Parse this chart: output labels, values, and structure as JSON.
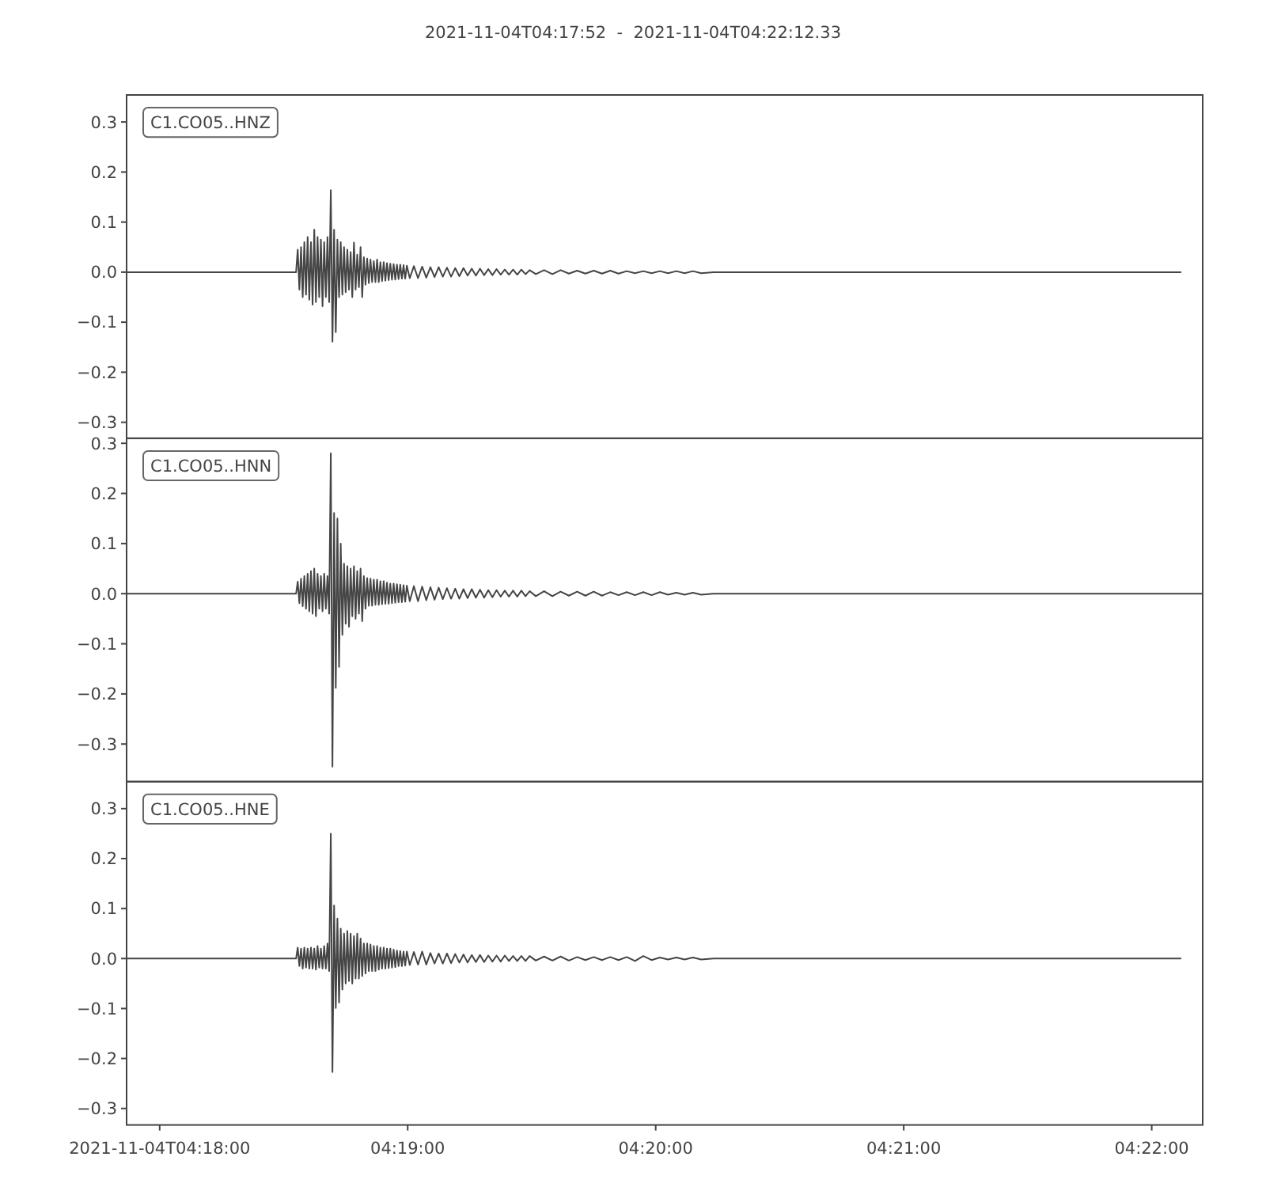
{
  "chart_data": [
    {
      "type": "line",
      "title": "2021-11-04T04:17:52  -  2021-11-04T04:22:12.33",
      "annotations": [
        "C1.CO05..HNZ"
      ],
      "x": [
        "2021-11-04T04:17:52",
        "2021-11-04T04:18:33",
        "2021-11-04T04:18:33.4",
        "2021-11-04T04:18:33.8",
        "2021-11-04T04:18:34.2",
        "2021-11-04T04:18:34.6",
        "2021-11-04T04:18:35",
        "2021-11-04T04:18:35.4",
        "2021-11-04T04:18:35.8",
        "2021-11-04T04:18:36.2",
        "2021-11-04T04:18:36.6",
        "2021-11-04T04:18:37",
        "2021-11-04T04:18:37.4",
        "2021-11-04T04:18:37.8",
        "2021-11-04T04:18:38.2",
        "2021-11-04T04:18:38.6",
        "2021-11-04T04:18:39",
        "2021-11-04T04:18:39.4",
        "2021-11-04T04:18:39.8",
        "2021-11-04T04:18:40.2",
        "2021-11-04T04:18:40.6",
        "2021-11-04T04:18:41",
        "2021-11-04T04:18:41.4",
        "2021-11-04T04:18:41.8",
        "2021-11-04T04:18:42.2",
        "2021-11-04T04:18:42.6",
        "2021-11-04T04:18:43",
        "2021-11-04T04:18:43.4",
        "2021-11-04T04:18:43.8",
        "2021-11-04T04:18:44.2",
        "2021-11-04T04:18:44.6",
        "2021-11-04T04:18:45",
        "2021-11-04T04:18:45.4",
        "2021-11-04T04:18:45.8",
        "2021-11-04T04:18:46.2",
        "2021-11-04T04:18:46.6",
        "2021-11-04T04:18:47",
        "2021-11-04T04:18:47.4",
        "2021-11-04T04:18:47.8",
        "2021-11-04T04:18:48.2",
        "2021-11-04T04:18:48.6",
        "2021-11-04T04:18:49",
        "2021-11-04T04:18:49.4",
        "2021-11-04T04:18:49.8",
        "2021-11-04T04:18:50.2",
        "2021-11-04T04:18:50.6",
        "2021-11-04T04:18:51",
        "2021-11-04T04:18:51.4",
        "2021-11-04T04:18:51.8",
        "2021-11-04T04:18:52.2",
        "2021-11-04T04:18:52.6",
        "2021-11-04T04:18:53",
        "2021-11-04T04:18:53.4",
        "2021-11-04T04:18:53.8",
        "2021-11-04T04:18:54.2",
        "2021-11-04T04:18:54.6",
        "2021-11-04T04:18:55",
        "2021-11-04T04:18:55.4",
        "2021-11-04T04:18:55.8",
        "2021-11-04T04:18:56.2",
        "2021-11-04T04:18:56.6",
        "2021-11-04T04:18:57",
        "2021-11-04T04:18:57.4",
        "2021-11-04T04:18:57.8",
        "2021-11-04T04:18:58.2",
        "2021-11-04T04:18:58.6",
        "2021-11-04T04:18:59",
        "2021-11-04T04:18:59.4",
        "2021-11-04T04:18:59.8",
        "2021-11-04T04:19:00.5",
        "2021-11-04T04:19:01.5",
        "2021-11-04T04:19:02.5",
        "2021-11-04T04:19:03.5",
        "2021-11-04T04:19:04.5",
        "2021-11-04T04:19:05.5",
        "2021-11-04T04:19:06.5",
        "2021-11-04T04:19:07.5",
        "2021-11-04T04:19:08.5",
        "2021-11-04T04:19:09.5",
        "2021-11-04T04:19:10.5",
        "2021-11-04T04:19:11.5",
        "2021-11-04T04:19:12.5",
        "2021-11-04T04:19:13.5",
        "2021-11-04T04:19:14.5",
        "2021-11-04T04:19:15.5",
        "2021-11-04T04:19:16.5",
        "2021-11-04T04:19:17.5",
        "2021-11-04T04:19:18.5",
        "2021-11-04T04:19:19.5",
        "2021-11-04T04:19:20.5",
        "2021-11-04T04:19:21.5",
        "2021-11-04T04:19:22.5",
        "2021-11-04T04:19:23.5",
        "2021-11-04T04:19:24.5",
        "2021-11-04T04:19:25.5",
        "2021-11-04T04:19:26.5",
        "2021-11-04T04:19:27.5",
        "2021-11-04T04:19:28.5",
        "2021-11-04T04:19:29.5",
        "2021-11-04T04:19:31",
        "2021-11-04T04:19:33",
        "2021-11-04T04:19:35",
        "2021-11-04T04:19:37",
        "2021-11-04T04:19:39",
        "2021-11-04T04:19:41",
        "2021-11-04T04:19:43",
        "2021-11-04T04:19:45",
        "2021-11-04T04:19:47",
        "2021-11-04T04:19:49",
        "2021-11-04T04:19:51",
        "2021-11-04T04:19:53",
        "2021-11-04T04:19:55",
        "2021-11-04T04:19:57",
        "2021-11-04T04:19:59",
        "2021-11-04T04:20:01",
        "2021-11-04T04:20:03",
        "2021-11-04T04:20:05",
        "2021-11-04T04:20:07",
        "2021-11-04T04:20:09",
        "2021-11-04T04:20:11",
        "2021-11-04T04:20:14",
        "2021-11-04T04:22:07"
      ],
      "series": [
        {
          "color": "#454545",
          "values": [
            0,
            0,
            0.045,
            -0.035,
            0.05,
            -0.05,
            0.06,
            -0.045,
            0.07,
            -0.055,
            0.06,
            -0.065,
            0.085,
            -0.06,
            0.07,
            -0.05,
            0.065,
            -0.068,
            0.06,
            -0.05,
            0.07,
            -0.06,
            0.164,
            -0.139,
            0.085,
            -0.12,
            0.065,
            -0.05,
            0.06,
            -0.045,
            0.05,
            -0.04,
            0.045,
            -0.035,
            0.04,
            -0.05,
            0.059,
            -0.035,
            0.035,
            -0.03,
            0.05,
            -0.05,
            0.03,
            -0.025,
            0.027,
            -0.022,
            0.025,
            -0.02,
            0.022,
            -0.02,
            0.025,
            -0.02,
            0.02,
            -0.018,
            0.02,
            -0.017,
            0.018,
            -0.016,
            0.017,
            -0.015,
            0.016,
            -0.015,
            0.015,
            -0.014,
            0.015,
            -0.013,
            0.014,
            -0.013,
            0.013,
            -0.012,
            0.012,
            -0.012,
            0.011,
            -0.011,
            0.01,
            -0.01,
            0.01,
            -0.009,
            0.009,
            -0.009,
            0.008,
            -0.008,
            0.008,
            -0.007,
            0.007,
            -0.007,
            0.007,
            -0.006,
            0.006,
            -0.006,
            0.006,
            -0.005,
            0.005,
            -0.005,
            0.005,
            -0.005,
            0.005,
            -0.004,
            0.004,
            -0.004,
            0.004,
            -0.004,
            0.004,
            -0.003,
            0.003,
            -0.003,
            0.003,
            -0.003,
            0.003,
            -0.003,
            0.002,
            -0.002,
            0.002,
            -0.002,
            0.002,
            -0.002,
            0.002,
            -0.002,
            0.002,
            -0.002,
            0,
            0
          ]
        }
      ],
      "xlim": [
        "2021-11-04T04:17:52",
        "2021-11-04T04:22:12.33"
      ],
      "ylim": [
        -0.332,
        0.354
      ],
      "yticks": [
        {
          "value": -0.3,
          "label": "−0.3"
        },
        {
          "value": -0.2,
          "label": "−0.2"
        },
        {
          "value": -0.1,
          "label": "−0.1"
        },
        {
          "value": 0,
          "label": "0.0"
        },
        0.1,
        0.2,
        0.3
      ],
      "tick_labels": "y"
    },
    {
      "type": "line",
      "annotations": [
        "C1.CO05..HNN"
      ],
      "x": [
        "2021-11-04T04:17:52",
        "2021-11-04T04:18:33",
        "2021-11-04T04:18:33.4",
        "2021-11-04T04:18:33.8",
        "2021-11-04T04:18:34.2",
        "2021-11-04T04:18:34.6",
        "2021-11-04T04:18:35",
        "2021-11-04T04:18:35.4",
        "2021-11-04T04:18:35.8",
        "2021-11-04T04:18:36.2",
        "2021-11-04T04:18:36.6",
        "2021-11-04T04:18:37",
        "2021-11-04T04:18:37.4",
        "2021-11-04T04:18:37.8",
        "2021-11-04T04:18:38.2",
        "2021-11-04T04:18:38.6",
        "2021-11-04T04:18:39",
        "2021-11-04T04:18:39.4",
        "2021-11-04T04:18:39.8",
        "2021-11-04T04:18:40.2",
        "2021-11-04T04:18:40.6",
        "2021-11-04T04:18:41",
        "2021-11-04T04:18:41.4",
        "2021-11-04T04:18:41.8",
        "2021-11-04T04:18:42.2",
        "2021-11-04T04:18:42.6",
        "2021-11-04T04:18:43",
        "2021-11-04T04:18:43.4",
        "2021-11-04T04:18:43.8",
        "2021-11-04T04:18:44.2",
        "2021-11-04T04:18:44.6",
        "2021-11-04T04:18:45",
        "2021-11-04T04:18:45.4",
        "2021-11-04T04:18:45.8",
        "2021-11-04T04:18:46.2",
        "2021-11-04T04:18:46.6",
        "2021-11-04T04:18:47",
        "2021-11-04T04:18:47.4",
        "2021-11-04T04:18:47.8",
        "2021-11-04T04:18:48.2",
        "2021-11-04T04:18:48.6",
        "2021-11-04T04:18:49",
        "2021-11-04T04:18:49.4",
        "2021-11-04T04:18:49.8",
        "2021-11-04T04:18:50.2",
        "2021-11-04T04:18:50.6",
        "2021-11-04T04:18:51",
        "2021-11-04T04:18:51.4",
        "2021-11-04T04:18:51.8",
        "2021-11-04T04:18:52.2",
        "2021-11-04T04:18:52.6",
        "2021-11-04T04:18:53",
        "2021-11-04T04:18:53.4",
        "2021-11-04T04:18:53.8",
        "2021-11-04T04:18:54.2",
        "2021-11-04T04:18:54.6",
        "2021-11-04T04:18:55",
        "2021-11-04T04:18:55.4",
        "2021-11-04T04:18:55.8",
        "2021-11-04T04:18:56.2",
        "2021-11-04T04:18:56.6",
        "2021-11-04T04:18:57",
        "2021-11-04T04:18:57.4",
        "2021-11-04T04:18:57.8",
        "2021-11-04T04:18:58.2",
        "2021-11-04T04:18:58.6",
        "2021-11-04T04:18:59",
        "2021-11-04T04:18:59.4",
        "2021-11-04T04:18:59.8",
        "2021-11-04T04:19:00.5",
        "2021-11-04T04:19:01.5",
        "2021-11-04T04:19:02.5",
        "2021-11-04T04:19:03.5",
        "2021-11-04T04:19:04.5",
        "2021-11-04T04:19:05.5",
        "2021-11-04T04:19:06.5",
        "2021-11-04T04:19:07.5",
        "2021-11-04T04:19:08.5",
        "2021-11-04T04:19:09.5",
        "2021-11-04T04:19:10.5",
        "2021-11-04T04:19:11.5",
        "2021-11-04T04:19:12.5",
        "2021-11-04T04:19:13.5",
        "2021-11-04T04:19:14.5",
        "2021-11-04T04:19:15.5",
        "2021-11-04T04:19:16.5",
        "2021-11-04T04:19:17.5",
        "2021-11-04T04:19:18.5",
        "2021-11-04T04:19:19.5",
        "2021-11-04T04:19:20.5",
        "2021-11-04T04:19:21.5",
        "2021-11-04T04:19:22.5",
        "2021-11-04T04:19:23.5",
        "2021-11-04T04:19:24.5",
        "2021-11-04T04:19:25.5",
        "2021-11-04T04:19:26.5",
        "2021-11-04T04:19:27.5",
        "2021-11-04T04:19:28.5",
        "2021-11-04T04:19:29.5",
        "2021-11-04T04:19:31",
        "2021-11-04T04:19:33",
        "2021-11-04T04:19:35",
        "2021-11-04T04:19:37",
        "2021-11-04T04:19:39",
        "2021-11-04T04:19:41",
        "2021-11-04T04:19:43",
        "2021-11-04T04:19:45",
        "2021-11-04T04:19:47",
        "2021-11-04T04:19:49",
        "2021-11-04T04:19:51",
        "2021-11-04T04:19:53",
        "2021-11-04T04:19:55",
        "2021-11-04T04:19:57",
        "2021-11-04T04:19:59",
        "2021-11-04T04:20:01",
        "2021-11-04T04:20:03",
        "2021-11-04T04:20:05",
        "2021-11-04T04:20:07",
        "2021-11-04T04:20:09",
        "2021-11-04T04:20:11",
        "2021-11-04T04:20:14",
        "2021-11-04T04:22:12.33"
      ],
      "series": [
        {
          "color": "#454545",
          "values": [
            0,
            0,
            0.024,
            -0.019,
            0.03,
            -0.025,
            0.035,
            -0.03,
            0.04,
            -0.035,
            0.045,
            -0.04,
            0.05,
            -0.045,
            0.04,
            -0.03,
            0.035,
            -0.035,
            0.04,
            -0.03,
            0.035,
            -0.04,
            0.28,
            -0.345,
            0.161,
            -0.188,
            0.15,
            -0.146,
            0.1,
            -0.082,
            0.06,
            -0.06,
            0.055,
            -0.066,
            0.05,
            -0.045,
            0.055,
            -0.05,
            0.045,
            -0.04,
            0.05,
            -0.055,
            0.035,
            -0.03,
            0.031,
            -0.024,
            0.03,
            -0.024,
            0.028,
            -0.022,
            0.028,
            -0.022,
            0.025,
            -0.021,
            0.025,
            -0.02,
            0.022,
            -0.02,
            0.02,
            -0.019,
            0.02,
            -0.018,
            0.019,
            -0.017,
            0.018,
            -0.017,
            0.017,
            -0.016,
            0.016,
            -0.015,
            0.015,
            -0.015,
            0.014,
            -0.013,
            0.013,
            -0.012,
            0.012,
            -0.011,
            0.011,
            -0.01,
            0.01,
            -0.01,
            0.009,
            -0.009,
            0.009,
            -0.008,
            0.008,
            -0.008,
            0.007,
            -0.007,
            0.007,
            -0.006,
            0.006,
            -0.006,
            0.006,
            -0.006,
            0.006,
            -0.005,
            0.005,
            -0.005,
            0.005,
            -0.005,
            0.004,
            -0.004,
            0.004,
            -0.004,
            0.004,
            -0.004,
            0.003,
            -0.003,
            0.003,
            -0.003,
            0.003,
            -0.003,
            0.003,
            -0.002,
            0.002,
            -0.002,
            0.002,
            -0.002,
            0,
            0
          ]
        }
      ],
      "xlim": [
        "2021-11-04T04:17:52",
        "2021-11-04T04:22:12.33"
      ],
      "ylim": [
        -0.375,
        0.31
      ],
      "yticks": [
        {
          "value": -0.3,
          "label": "−0.3"
        },
        {
          "value": -0.2,
          "label": "−0.2"
        },
        {
          "value": -0.1,
          "label": "−0.1"
        },
        {
          "value": 0,
          "label": "0.0"
        },
        0.1,
        0.2,
        0.3
      ],
      "tick_labels": "y"
    },
    {
      "type": "line",
      "annotations": [
        "C1.CO05..HNE"
      ],
      "x": [
        "2021-11-04T04:17:52",
        "2021-11-04T04:18:33",
        "2021-11-04T04:18:33.4",
        "2021-11-04T04:18:33.8",
        "2021-11-04T04:18:34.2",
        "2021-11-04T04:18:34.6",
        "2021-11-04T04:18:35",
        "2021-11-04T04:18:35.4",
        "2021-11-04T04:18:35.8",
        "2021-11-04T04:18:36.2",
        "2021-11-04T04:18:36.6",
        "2021-11-04T04:18:37",
        "2021-11-04T04:18:37.4",
        "2021-11-04T04:18:37.8",
        "2021-11-04T04:18:38.2",
        "2021-11-04T04:18:38.6",
        "2021-11-04T04:18:39",
        "2021-11-04T04:18:39.4",
        "2021-11-04T04:18:39.8",
        "2021-11-04T04:18:40.2",
        "2021-11-04T04:18:40.6",
        "2021-11-04T04:18:41",
        "2021-11-04T04:18:41.4",
        "2021-11-04T04:18:41.8",
        "2021-11-04T04:18:42.2",
        "2021-11-04T04:18:42.6",
        "2021-11-04T04:18:43",
        "2021-11-04T04:18:43.4",
        "2021-11-04T04:18:43.8",
        "2021-11-04T04:18:44.2",
        "2021-11-04T04:18:44.6",
        "2021-11-04T04:18:45",
        "2021-11-04T04:18:45.4",
        "2021-11-04T04:18:45.8",
        "2021-11-04T04:18:46.2",
        "2021-11-04T04:18:46.6",
        "2021-11-04T04:18:47",
        "2021-11-04T04:18:47.4",
        "2021-11-04T04:18:47.8",
        "2021-11-04T04:18:48.2",
        "2021-11-04T04:18:48.6",
        "2021-11-04T04:18:49",
        "2021-11-04T04:18:49.4",
        "2021-11-04T04:18:49.8",
        "2021-11-04T04:18:50.2",
        "2021-11-04T04:18:50.6",
        "2021-11-04T04:18:51",
        "2021-11-04T04:18:51.4",
        "2021-11-04T04:18:51.8",
        "2021-11-04T04:18:52.2",
        "2021-11-04T04:18:52.6",
        "2021-11-04T04:18:53",
        "2021-11-04T04:18:53.4",
        "2021-11-04T04:18:53.8",
        "2021-11-04T04:18:54.2",
        "2021-11-04T04:18:54.6",
        "2021-11-04T04:18:55",
        "2021-11-04T04:18:55.4",
        "2021-11-04T04:18:55.8",
        "2021-11-04T04:18:56.2",
        "2021-11-04T04:18:56.6",
        "2021-11-04T04:18:57",
        "2021-11-04T04:18:57.4",
        "2021-11-04T04:18:57.8",
        "2021-11-04T04:18:58.2",
        "2021-11-04T04:18:58.6",
        "2021-11-04T04:18:59",
        "2021-11-04T04:18:59.4",
        "2021-11-04T04:18:59.8",
        "2021-11-04T04:19:00.5",
        "2021-11-04T04:19:01.5",
        "2021-11-04T04:19:02.5",
        "2021-11-04T04:19:03.5",
        "2021-11-04T04:19:04.5",
        "2021-11-04T04:19:05.5",
        "2021-11-04T04:19:06.5",
        "2021-11-04T04:19:07.5",
        "2021-11-04T04:19:08.5",
        "2021-11-04T04:19:09.5",
        "2021-11-04T04:19:10.5",
        "2021-11-04T04:19:11.5",
        "2021-11-04T04:19:12.5",
        "2021-11-04T04:19:13.5",
        "2021-11-04T04:19:14.5",
        "2021-11-04T04:19:15.5",
        "2021-11-04T04:19:16.5",
        "2021-11-04T04:19:17.5",
        "2021-11-04T04:19:18.5",
        "2021-11-04T04:19:19.5",
        "2021-11-04T04:19:20.5",
        "2021-11-04T04:19:21.5",
        "2021-11-04T04:19:22.5",
        "2021-11-04T04:19:23.5",
        "2021-11-04T04:19:24.5",
        "2021-11-04T04:19:25.5",
        "2021-11-04T04:19:26.5",
        "2021-11-04T04:19:27.5",
        "2021-11-04T04:19:28.5",
        "2021-11-04T04:19:29.5",
        "2021-11-04T04:19:31",
        "2021-11-04T04:19:33",
        "2021-11-04T04:19:35",
        "2021-11-04T04:19:37",
        "2021-11-04T04:19:39",
        "2021-11-04T04:19:41",
        "2021-11-04T04:19:43",
        "2021-11-04T04:19:45",
        "2021-11-04T04:19:47",
        "2021-11-04T04:19:49",
        "2021-11-04T04:19:51",
        "2021-11-04T04:19:53",
        "2021-11-04T04:19:55",
        "2021-11-04T04:19:57",
        "2021-11-04T04:19:59",
        "2021-11-04T04:20:01",
        "2021-11-04T04:20:03",
        "2021-11-04T04:20:05",
        "2021-11-04T04:20:07",
        "2021-11-04T04:20:09",
        "2021-11-04T04:20:11",
        "2021-11-04T04:20:14",
        "2021-11-04T04:22:07"
      ],
      "series": [
        {
          "color": "#454545",
          "values": [
            0,
            0,
            0.022,
            -0.015,
            0.02,
            -0.02,
            0.022,
            -0.018,
            0.02,
            -0.02,
            0.022,
            -0.02,
            0.02,
            -0.022,
            0.025,
            -0.018,
            0.02,
            -0.02,
            0.025,
            -0.02,
            0.03,
            -0.025,
            0.25,
            -0.227,
            0.106,
            -0.099,
            0.08,
            -0.088,
            0.06,
            -0.062,
            0.05,
            -0.05,
            0.055,
            -0.045,
            0.05,
            -0.05,
            0.045,
            -0.04,
            0.05,
            -0.04,
            0.04,
            -0.035,
            0.03,
            -0.03,
            0.03,
            -0.025,
            0.028,
            -0.025,
            0.025,
            -0.025,
            0.025,
            -0.022,
            0.022,
            -0.02,
            0.022,
            -0.02,
            0.02,
            -0.019,
            0.02,
            -0.018,
            0.018,
            -0.017,
            0.016,
            -0.015,
            0.015,
            -0.015,
            0.014,
            -0.014,
            0.014,
            -0.013,
            0.013,
            -0.012,
            0.014,
            -0.012,
            0.011,
            -0.01,
            0.01,
            -0.01,
            0.01,
            -0.009,
            0.009,
            -0.008,
            0.008,
            -0.008,
            0.007,
            -0.007,
            0.007,
            -0.007,
            0.006,
            -0.006,
            0.006,
            -0.006,
            0.006,
            -0.005,
            0.005,
            -0.005,
            0.005,
            -0.005,
            0.005,
            -0.004,
            0.004,
            -0.004,
            0.004,
            -0.004,
            0.003,
            -0.003,
            0.003,
            -0.003,
            0.003,
            -0.003,
            0.003,
            -0.005,
            0.005,
            -0.003,
            0.002,
            -0.002,
            0.002,
            -0.002,
            0.002,
            -0.002,
            0,
            0
          ]
        }
      ],
      "xlim": [
        "2021-11-04T04:17:52",
        "2021-11-04T04:22:12.33"
      ],
      "xticks": [
        {
          "value": "2021-11-04T04:18:00",
          "label": "2021-11-04T04:18:00"
        },
        {
          "value": "2021-11-04T04:19:00",
          "label": "04:19:00"
        },
        {
          "value": "2021-11-04T04:20:00",
          "label": "04:20:00"
        },
        {
          "value": "2021-11-04T04:21:00",
          "label": "04:21:00"
        },
        {
          "value": "2021-11-04T04:22:00",
          "label": "04:22:00"
        }
      ],
      "ylim": [
        -0.333,
        0.354
      ],
      "yticks": [
        {
          "value": -0.3,
          "label": "−0.3"
        },
        {
          "value": -0.2,
          "label": "−0.2"
        },
        {
          "value": -0.1,
          "label": "−0.1"
        },
        {
          "value": 0,
          "label": "0.0"
        },
        0.1,
        0.2,
        0.3
      ]
    }
  ]
}
